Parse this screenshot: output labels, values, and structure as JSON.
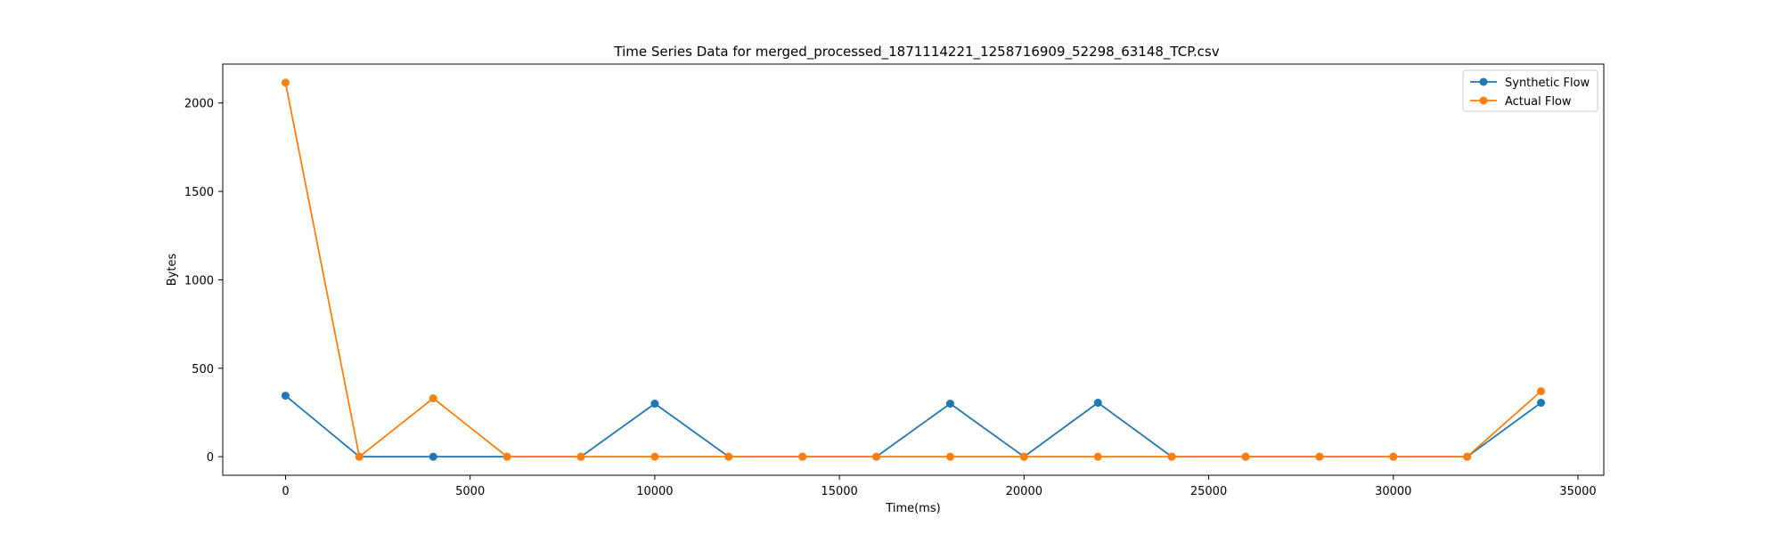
{
  "chart_data": {
    "type": "line",
    "title": "Time Series Data for merged_processed_1871114221_1258716909_52298_63148_TCP.csv",
    "xlabel": "Time(ms)",
    "ylabel": "Bytes",
    "xlim": [
      -1700,
      35700
    ],
    "ylim": [
      -105,
      2220
    ],
    "xticks": [
      0,
      5000,
      10000,
      15000,
      20000,
      25000,
      30000,
      35000
    ],
    "yticks": [
      0,
      500,
      1000,
      1500,
      2000
    ],
    "grid": false,
    "legend_position": "top-right",
    "x": [
      0,
      2000,
      4000,
      6000,
      8000,
      10000,
      12000,
      14000,
      16000,
      18000,
      20000,
      22000,
      24000,
      26000,
      28000,
      30000,
      32000,
      34000
    ],
    "series": [
      {
        "name": "Synthetic Flow",
        "color": "#1f77b4",
        "values": [
          345,
          0,
          0,
          0,
          0,
          300,
          0,
          0,
          0,
          300,
          0,
          305,
          0,
          0,
          0,
          0,
          0,
          305
        ]
      },
      {
        "name": "Actual Flow",
        "color": "#ff7f0e",
        "values": [
          2115,
          0,
          330,
          0,
          0,
          0,
          0,
          0,
          0,
          0,
          0,
          0,
          0,
          0,
          0,
          0,
          0,
          370
        ]
      }
    ]
  }
}
